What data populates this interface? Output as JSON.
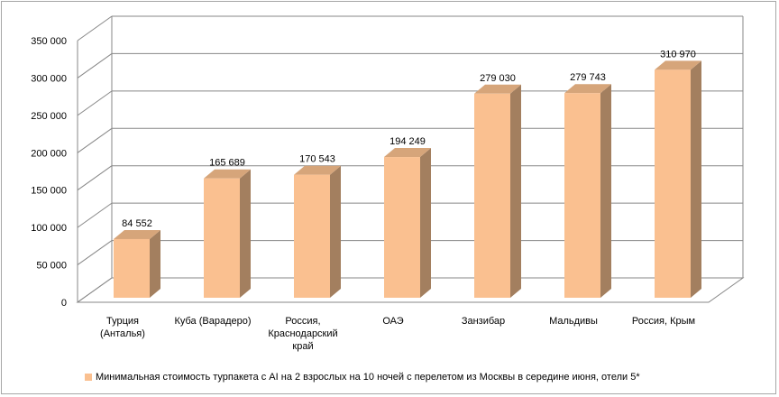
{
  "chart_data": {
    "type": "bar",
    "categories": [
      [
        "Турция",
        "(Анталья)"
      ],
      [
        "Куба (Варадеро)"
      ],
      [
        "Россия,",
        "Краснодарский",
        "край"
      ],
      [
        "ОАЭ"
      ],
      [
        "Занзибар"
      ],
      [
        "Мальдивы"
      ],
      [
        "Россия, Крым"
      ]
    ],
    "series": [
      {
        "name": "Минимальная стоимость турпакета с AI на 2 взрослых на 10 ночей с перелетом из Москвы в середине июня, отели 5*",
        "values": [
          84552,
          165689,
          170543,
          194249,
          279030,
          279743,
          310970
        ],
        "labels": [
          "84 552",
          "165 689",
          "170 543",
          "194 249",
          "279 030",
          "279 743",
          "310 970"
        ]
      }
    ],
    "yticks": [
      0,
      50000,
      100000,
      150000,
      200000,
      250000,
      300000,
      350000
    ],
    "ytick_labels": [
      "0",
      "50 000",
      "100 000",
      "150 000",
      "200 000",
      "250 000",
      "300 000",
      "350 000"
    ],
    "ylim": [
      0,
      350000
    ],
    "grid": true,
    "legend_position": "bottom",
    "colors": {
      "bar_front": "#fac090",
      "bar_side": "#a37f5f",
      "bar_top": "#d6a57a",
      "grid": "#878787"
    }
  }
}
